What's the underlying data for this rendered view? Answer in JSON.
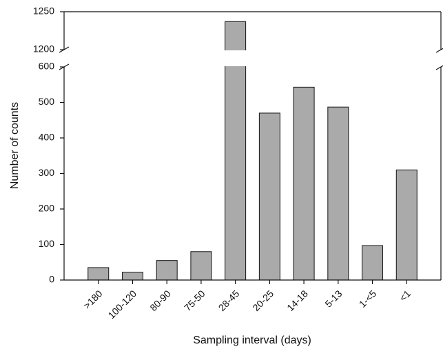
{
  "chart_data": {
    "type": "bar",
    "xlabel": "Sampling interval (days)",
    "ylabel": "Number of counts",
    "categories": [
      ">180",
      "100-120",
      "80-90",
      "75-50",
      "28-45",
      "20-25",
      "14-18",
      "5-13",
      "1-<5",
      "<1"
    ],
    "values": [
      35,
      22,
      55,
      80,
      1237,
      470,
      543,
      487,
      97,
      310
    ],
    "color": "#aaaaaa",
    "ylim": [
      0,
      1250
    ],
    "ybreak": [
      600,
      1200
    ],
    "yticks": [
      0,
      100,
      200,
      300,
      400,
      500,
      600,
      1200,
      1250
    ]
  }
}
